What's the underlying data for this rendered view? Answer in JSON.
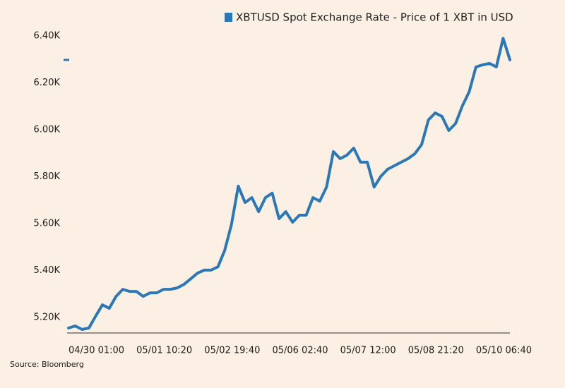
{
  "chart_data": {
    "type": "line",
    "source": "Source: Bloomberg",
    "categories": [
      "04/30 01:00",
      null,
      null,
      null,
      null,
      null,
      null,
      null,
      null,
      null,
      "05/01 10:20",
      null,
      null,
      null,
      null,
      null,
      null,
      null,
      null,
      null,
      "05/02 19:40",
      null,
      null,
      null,
      null,
      null,
      null,
      null,
      null,
      null,
      "05/06 02:40",
      null,
      null,
      null,
      null,
      null,
      null,
      null,
      null,
      null,
      "05/07 12:00",
      null,
      null,
      null,
      null,
      null,
      null,
      null,
      null,
      null,
      "05/08 21:20",
      null,
      null,
      null,
      null,
      null,
      null,
      null,
      null,
      null,
      "05/10 06:40",
      null,
      null,
      null,
      null,
      null
    ],
    "series": [
      {
        "name": "XBTUSD Spot Exchange Rate - Price of 1 XBT in USD",
        "color": "#2b78b8",
        "values": [
          5155,
          5164,
          5149,
          5155,
          5206,
          5254,
          5239,
          5290,
          5320,
          5311,
          5311,
          5290,
          5305,
          5305,
          5320,
          5320,
          5326,
          5341,
          5365,
          5389,
          5402,
          5402,
          5416,
          5486,
          5597,
          5760,
          5690,
          5711,
          5651,
          5711,
          5730,
          5621,
          5651,
          5606,
          5636,
          5636,
          5711,
          5696,
          5756,
          5907,
          5877,
          5892,
          5922,
          5862,
          5862,
          5756,
          5802,
          5832,
          5847,
          5862,
          5877,
          5898,
          5937,
          6042,
          6072,
          6057,
          5997,
          6027,
          6102,
          6162,
          6268,
          6277,
          6283,
          6268,
          6390,
          6298
        ]
      }
    ],
    "ylim": [
      5134,
      6430
    ],
    "yticks": [
      {
        "value": 5200,
        "label": "5.20K"
      },
      {
        "value": 5400,
        "label": "5.40K"
      },
      {
        "value": 5600,
        "label": "5.60K"
      },
      {
        "value": 5800,
        "label": "5.80K"
      },
      {
        "value": 6000,
        "label": "6.00K"
      },
      {
        "value": 6200,
        "label": "6.20K"
      },
      {
        "value": 6400,
        "label": "6.40K"
      }
    ],
    "grid": false,
    "legend": "top"
  }
}
